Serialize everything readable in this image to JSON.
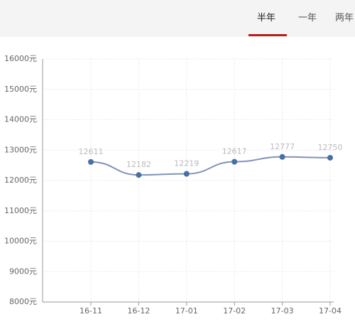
{
  "tabs": [
    "半年",
    "一年",
    "两年"
  ],
  "chart_data": {
    "type": "line",
    "categories": [
      "16-11",
      "16-12",
      "17-01",
      "17-02",
      "17-03",
      "17-04"
    ],
    "series": [
      {
        "name": "price",
        "color": "#7f93b8",
        "values": [
          12611,
          12182,
          12219,
          12617,
          12777,
          12750
        ]
      }
    ],
    "ylim": [
      8000,
      16000
    ],
    "yticks": [
      {
        "value": 8000,
        "label": "8000元"
      },
      {
        "value": 9000,
        "label": "9000元"
      },
      {
        "value": 10000,
        "label": "10000元"
      },
      {
        "value": 11000,
        "label": "11000元"
      },
      {
        "value": 12000,
        "label": "12000元"
      },
      {
        "value": 13000,
        "label": "13000元"
      },
      {
        "value": 14000,
        "label": "14000元"
      },
      {
        "value": 15000,
        "label": "15000元"
      },
      {
        "value": 16000,
        "label": "16000元"
      }
    ],
    "grid": true
  }
}
